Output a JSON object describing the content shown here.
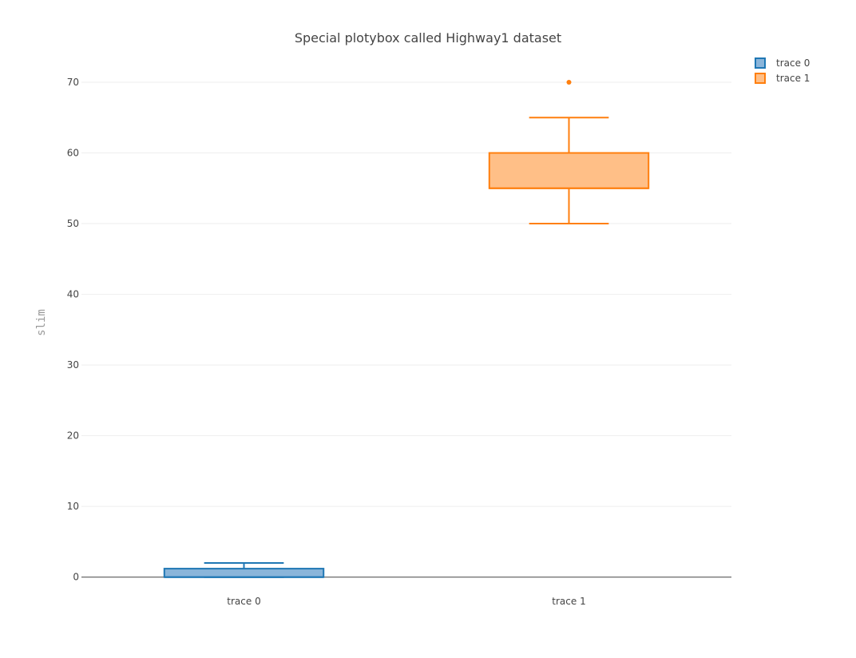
{
  "chart_data": {
    "type": "box",
    "title": "Special plotybox called Highway1 dataset",
    "xlabel": "",
    "ylabel": "slim",
    "ylim": [
      -1.5,
      73.5
    ],
    "yticks": [
      0,
      10,
      20,
      30,
      40,
      50,
      60,
      70
    ],
    "grid": true,
    "legend_position": "top-right",
    "series": [
      {
        "name": "trace 0",
        "category": "trace 0",
        "color": "#1f77b4",
        "fill": "#8ab5da",
        "min": 0,
        "q1": 0,
        "median": 0,
        "q3": 1.2,
        "max": 2,
        "outliers": []
      },
      {
        "name": "trace 1",
        "category": "trace 1",
        "color": "#ff7f0e",
        "fill": "#ffbf87",
        "min": 50,
        "q1": 55,
        "median": 55,
        "q3": 60,
        "max": 65,
        "outliers": [
          70
        ]
      }
    ]
  }
}
